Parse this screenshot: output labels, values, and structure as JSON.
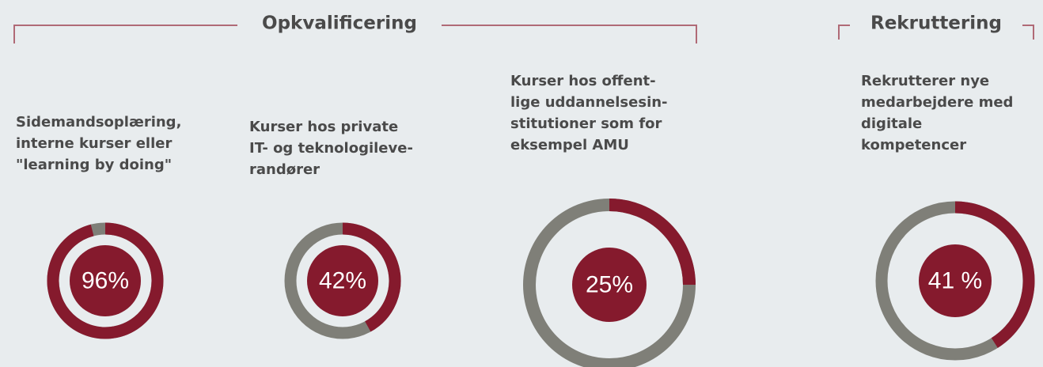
{
  "sections": [
    {
      "title": "Opkvalificering"
    },
    {
      "title": "Rekruttering"
    }
  ],
  "chart_data": [
    {
      "type": "donut",
      "title": [
        "Sidemandsoplæring,",
        "interne kurser eller",
        "\"learning by doing\""
      ],
      "values": [
        96
      ],
      "value_labels": [
        "96%"
      ],
      "color": "#851a2d",
      "rest_color": "#7f7f78"
    },
    {
      "type": "donut",
      "title": [
        "Kurser hos private",
        "IT- og teknologileve-",
        "randører"
      ],
      "values": [
        42
      ],
      "value_labels": [
        "42%"
      ],
      "color": "#851a2d",
      "rest_color": "#7f7f78"
    },
    {
      "type": "donut",
      "title": [
        "Kurser hos offent-",
        "lige uddannelsesin-",
        "stitutioner som for",
        "eksempel AMU"
      ],
      "values": [
        25
      ],
      "value_labels": [
        "25%"
      ],
      "color": "#851a2d",
      "rest_color": "#7f7f78"
    },
    {
      "type": "donut",
      "title": [
        "Rekrutterer nye",
        "medarbejdere med",
        "digitale",
        "kompetencer"
      ],
      "values": [
        41
      ],
      "value_labels": [
        "41 %"
      ],
      "color": "#851a2d",
      "rest_color": "#7f7f78"
    }
  ]
}
